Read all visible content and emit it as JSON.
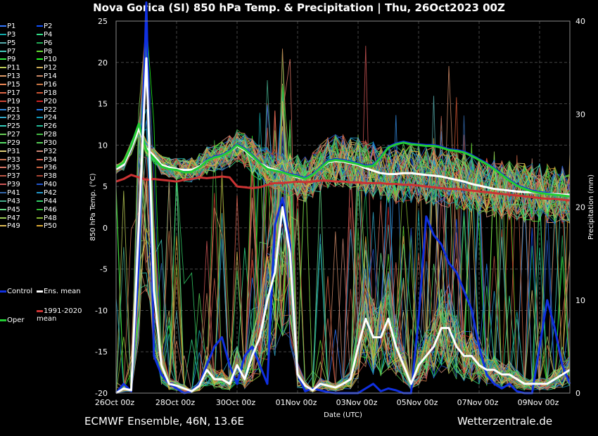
{
  "chart_data": {
    "type": "line",
    "title": "Nova Gorica  (SI)  850 hPa Temp. & Precipitation | Thu, 26Oct2023 00Z",
    "xlabel": "Date (UTC)",
    "ylabel": "850 hPa Temp. (°C)",
    "y2label": "Precipitation (mm)",
    "ylim": [
      -20,
      25
    ],
    "y2lim": [
      0,
      40
    ],
    "yticks": [
      "25",
      "20",
      "15",
      "10",
      "5",
      "0",
      "-5",
      "-10",
      "-15",
      "-20"
    ],
    "y2ticks": [
      "40",
      "30",
      "20",
      "10",
      "0"
    ],
    "xlim_hours": [
      0,
      360
    ],
    "xticks": [
      {
        "label": "26Oct 00z",
        "hour": 0
      },
      {
        "label": "28Oct 00z",
        "hour": 48
      },
      {
        "label": "30Oct 00z",
        "hour": 96
      },
      {
        "label": "01Nov 00z",
        "hour": 144
      },
      {
        "label": "03Nov 00z",
        "hour": 192
      },
      {
        "label": "05Nov 00z",
        "hour": 240
      },
      {
        "label": "07Nov 00z",
        "hour": 288
      },
      {
        "label": "09Nov 00z",
        "hour": 336
      }
    ],
    "grid": true,
    "legend_placement": "left",
    "hours": [
      0,
      6,
      12,
      18,
      24,
      30,
      36,
      42,
      48,
      54,
      60,
      66,
      72,
      78,
      84,
      90,
      96,
      102,
      108,
      114,
      120,
      126,
      132,
      138,
      144,
      150,
      156,
      162,
      168,
      174,
      180,
      186,
      192,
      198,
      204,
      210,
      216,
      222,
      228,
      234,
      240,
      246,
      252,
      258,
      264,
      270,
      276,
      282,
      288,
      294,
      300,
      306,
      312,
      318,
      324,
      330,
      336,
      342,
      348,
      354,
      360
    ],
    "series": [
      {
        "name": "Control",
        "color": "#1030e0",
        "width": 3,
        "axis": "temp",
        "values": [
          7.2,
          7.8,
          9.8,
          12.5,
          9.5,
          8.5,
          7.5,
          7.2,
          7.0,
          6.8,
          6.9,
          7.4,
          8.2,
          8.6,
          8.8,
          9.3,
          10.1,
          9.6,
          8.8,
          7.9,
          7.2,
          7.0,
          6.8,
          6.5,
          6.3,
          6.0,
          6.5,
          7.3,
          8.1,
          8.3,
          8.2,
          8.0,
          7.8,
          7.5,
          7.6,
          8.6,
          9.8,
          10.2,
          10.4,
          10.2,
          10.1,
          10.0,
          10.0,
          9.8,
          9.5,
          9.4,
          9.2,
          8.8,
          8.3,
          7.8,
          7.2,
          6.5,
          5.8,
          5.2,
          4.8,
          4.5,
          4.3,
          4.2,
          4.1,
          4.0,
          3.9
        ]
      },
      {
        "name": "Ens. mean",
        "color": "#ffffff",
        "width": 3,
        "axis": "temp",
        "values": [
          7.1,
          7.6,
          9.6,
          12.0,
          9.6,
          8.7,
          7.6,
          7.3,
          7.1,
          7.0,
          7.0,
          7.4,
          8.1,
          8.5,
          8.7,
          9.2,
          9.9,
          9.4,
          8.6,
          7.8,
          7.3,
          7.0,
          6.7,
          6.4,
          6.1,
          5.9,
          6.4,
          7.2,
          7.9,
          8.1,
          8.0,
          7.8,
          7.6,
          7.2,
          6.9,
          6.6,
          6.5,
          6.5,
          6.6,
          6.6,
          6.5,
          6.4,
          6.3,
          6.2,
          6.0,
          5.8,
          5.6,
          5.3,
          5.1,
          4.9,
          4.7,
          4.6,
          4.5,
          4.4,
          4.3,
          4.3,
          4.2,
          4.1,
          4.1,
          4.0,
          4.0
        ]
      },
      {
        "name": "1991-2020 mean",
        "color": "#cc3333",
        "width": 3,
        "axis": "temp",
        "values": [
          5.6,
          5.9,
          6.4,
          6.1,
          5.8,
          5.9,
          5.8,
          5.7,
          5.6,
          5.8,
          5.9,
          6.1,
          6.0,
          6.1,
          6.2,
          6.1,
          5.0,
          4.9,
          4.8,
          4.9,
          5.2,
          5.4,
          5.4,
          5.5,
          5.6,
          5.5,
          5.6,
          5.7,
          5.7,
          5.6,
          5.6,
          5.5,
          5.5,
          5.4,
          5.4,
          5.4,
          5.3,
          5.3,
          5.2,
          5.2,
          5.1,
          5.0,
          4.9,
          4.8,
          4.7,
          4.7,
          4.6,
          4.5,
          4.4,
          4.3,
          4.2,
          4.1,
          4.0,
          3.9,
          3.8,
          3.7,
          3.6,
          3.5,
          3.5,
          3.4,
          3.3
        ]
      },
      {
        "name": "Oper",
        "color": "#22cc33",
        "width": 3,
        "axis": "temp",
        "values": [
          7.3,
          7.9,
          9.9,
          12.6,
          9.4,
          8.4,
          7.4,
          7.1,
          7.0,
          6.7,
          6.8,
          7.3,
          8.1,
          8.5,
          8.7,
          9.2,
          10.0,
          9.5,
          8.7,
          7.8,
          7.1,
          6.9,
          6.7,
          6.4,
          6.2,
          5.9,
          6.4,
          7.2,
          8.0,
          8.2,
          8.1,
          7.9,
          7.7,
          7.4,
          7.5,
          8.5,
          9.7,
          10.1,
          10.3,
          10.1,
          10.0,
          9.9,
          9.9,
          9.7,
          9.4,
          9.3,
          9.1,
          8.7,
          8.2,
          7.7,
          7.1,
          6.4,
          5.7,
          5.1,
          4.7,
          4.4,
          4.2,
          4.1,
          4.0,
          3.9,
          3.8
        ]
      },
      {
        "name": "Control precip",
        "color": "#1030e0",
        "width": 3,
        "axis": "precip",
        "values": [
          0,
          1,
          0.2,
          14,
          42,
          4,
          2,
          1,
          0.5,
          0,
          0.2,
          1,
          3,
          5,
          6,
          3,
          1,
          4,
          5,
          3,
          1,
          18,
          21,
          16,
          2,
          0.2,
          0.5,
          0.3,
          0.1,
          0,
          0,
          0,
          0,
          0.5,
          1,
          0.2,
          0.5,
          0.3,
          0,
          0,
          8,
          19,
          17,
          16,
          14,
          13,
          11,
          9,
          5,
          2,
          1,
          0.5,
          1,
          0.2,
          0,
          0,
          5,
          10,
          7,
          3,
          1
        ]
      },
      {
        "name": "Ens. mean precip",
        "color": "#ffffff",
        "width": 3,
        "axis": "precip",
        "values": [
          0,
          0.5,
          0.3,
          18,
          36,
          11,
          3,
          1,
          0.8,
          0.5,
          0.2,
          0.8,
          2.5,
          1.5,
          1.5,
          1,
          3,
          1.5,
          4,
          6,
          10,
          13,
          20,
          15,
          2,
          0.8,
          0.3,
          1,
          0.8,
          0.6,
          1,
          1.5,
          5,
          8,
          6,
          6,
          8,
          5,
          3,
          1,
          3,
          4,
          5,
          7,
          7,
          5,
          4,
          4,
          3,
          2.5,
          2.5,
          2,
          2,
          1.5,
          1,
          1,
          1,
          1,
          1.5,
          2,
          2.5
        ]
      }
    ]
  },
  "legend": {
    "members": [
      "P1",
      "P2",
      "P3",
      "P4",
      "P5",
      "P6",
      "P7",
      "P8",
      "P9",
      "P10",
      "P11",
      "P12",
      "P13",
      "P14",
      "P15",
      "P16",
      "P17",
      "P18",
      "P19",
      "P20",
      "P21",
      "P22",
      "P23",
      "P24",
      "P25",
      "P26",
      "P27",
      "P28",
      "P29",
      "P30",
      "P31",
      "P32",
      "P33",
      "P34",
      "P35",
      "P36",
      "P37",
      "P38",
      "P39",
      "P40",
      "P41",
      "P42",
      "P43",
      "P44",
      "P45",
      "P46",
      "P47",
      "P48",
      "P49",
      "P50"
    ],
    "member_colors": [
      "#3377ff",
      "#1050ff",
      "#11aaaa",
      "#33dd88",
      "#55aaaa",
      "#22aa55",
      "#44ccbb",
      "#66dd33",
      "#33ee44",
      "#22ff22",
      "#bbcc55",
      "#ccaa55",
      "#dd9966",
      "#cc8866",
      "#ee8855",
      "#cc7744",
      "#dd6644",
      "#cc5533",
      "#cc4433",
      "#cc2222",
      "#3388dd",
      "#2277ee",
      "#33aacc",
      "#1199bb",
      "#33ccbb",
      "#22bb99",
      "#66cc55",
      "#44bb44",
      "#55dd66",
      "#55cc55",
      "#ddcc77",
      "#cc8877",
      "#cc7755",
      "#dd6655",
      "#dd7766",
      "#cc6644",
      "#bb5544",
      "#aa4433",
      "#cc5555",
      "#2255cc",
      "#3366aa",
      "#2299cc",
      "#44aa88",
      "#33cc66",
      "#66dd88",
      "#33bb33",
      "#99cc55",
      "#88bb33",
      "#ddbb55",
      "#ddaa33"
    ],
    "control": "Control",
    "ens_mean": "Ens. mean",
    "clim": "1991-2020 mean",
    "oper": "Oper"
  },
  "footer": {
    "left": "ECMWF Ensemble, 46N, 13.6E",
    "right": "Wetterzentrale.de"
  },
  "colors": {
    "background": "#000000",
    "grid": "#444444",
    "text": "#ffffff"
  }
}
